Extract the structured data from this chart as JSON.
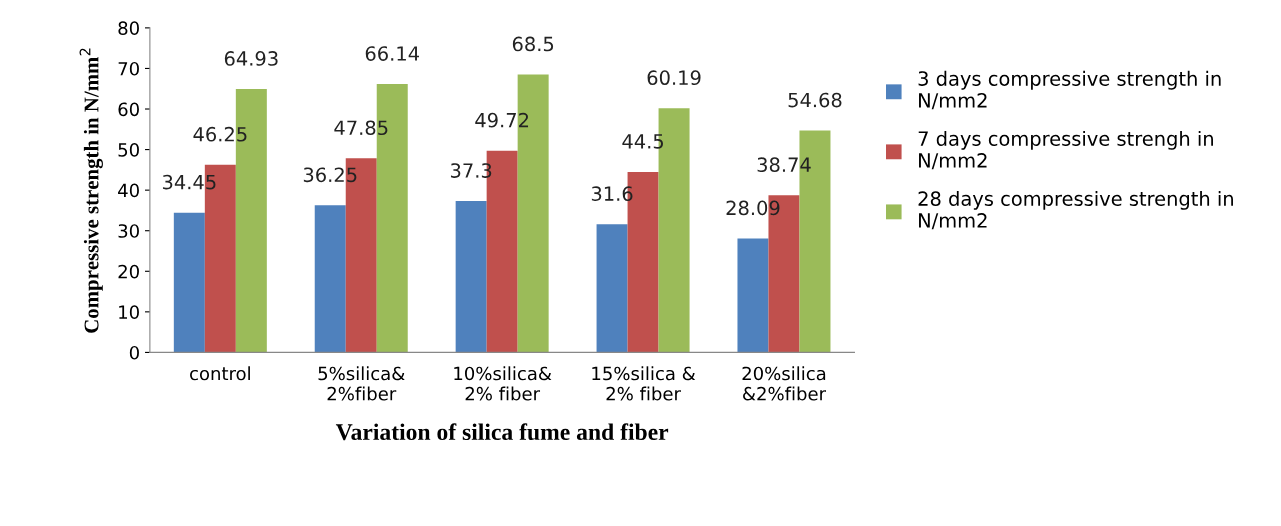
{
  "chart_data": {
    "type": "bar",
    "xlabel": "Variation of silica fume and fiber",
    "ylabel": "Compressive strength in N/mm$^{2}$",
    "categories": [
      "control",
      "5%silica&\n2%fiber",
      "10%silica&\n2% fiber",
      "15%silica &\n2% fiber",
      "20%silica\n&2%fiber"
    ],
    "series": [
      {
        "name": "3 days compressive strength in\nN/mm2",
        "color": "#4f81bd",
        "values": [
          34.45,
          36.25,
          37.3,
          31.6,
          28.09
        ]
      },
      {
        "name": "7 days compressive strengh in\nN/mm2",
        "color": "#c0504d",
        "values": [
          46.25,
          47.85,
          49.72,
          44.5,
          38.74
        ]
      },
      {
        "name": "28 days compressive strength in\nN/mm2",
        "color": "#9bbb59",
        "values": [
          64.93,
          66.14,
          68.5,
          60.19,
          54.68
        ]
      }
    ],
    "ylim": [
      0,
      80
    ],
    "yticks": [
      0,
      10,
      20,
      30,
      40,
      50,
      60,
      70,
      80
    ],
    "data_labels": true,
    "grid": false,
    "legend": "right"
  }
}
